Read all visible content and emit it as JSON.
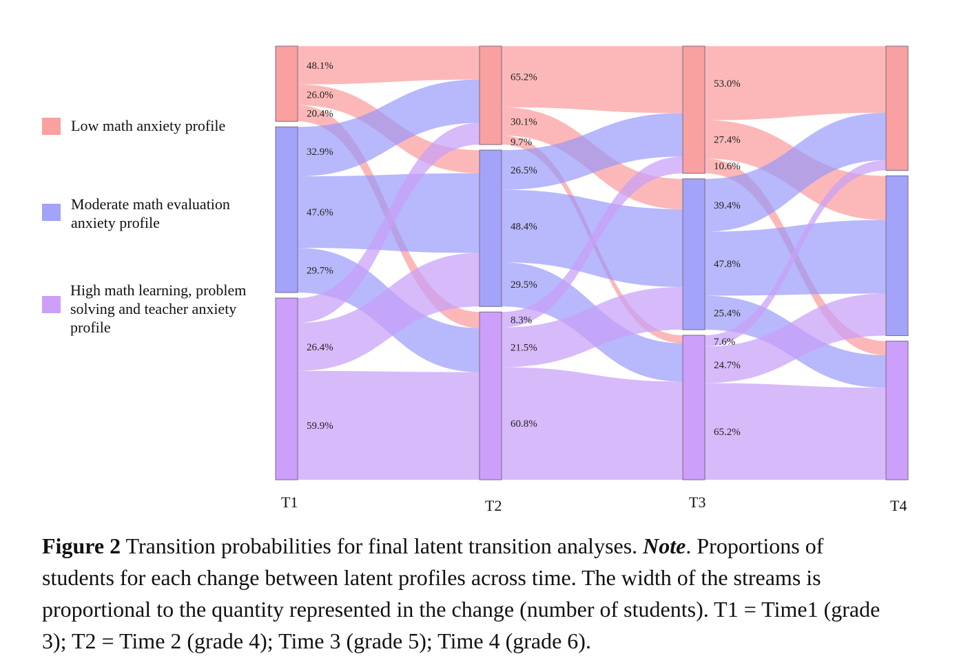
{
  "legend": [
    {
      "label": "Low math anxiety profile",
      "color": "#f9a0a0"
    },
    {
      "label": "Moderate math evaluation anxiety profile",
      "color": "#a3a3fa"
    },
    {
      "label": "High math learning, problem solving and teacher anxiety profile",
      "color": "#cc9ffa"
    }
  ],
  "chart_data": {
    "type": "sankey",
    "times": [
      "T1",
      "T2",
      "T3",
      "T4"
    ],
    "profiles": [
      "Low",
      "Moderate",
      "High"
    ],
    "profile_proportions": [
      [
        0.178,
        0.392,
        0.43
      ],
      [
        0.233,
        0.37,
        0.397
      ],
      [
        0.301,
        0.357,
        0.342
      ],
      [
        0.294,
        0.378,
        0.328
      ]
    ],
    "transitions": [
      [
        [
          {
            "v": 48.1,
            "label": "48.1%"
          },
          {
            "v": 26.0,
            "label": "26.0%"
          },
          {
            "v": 20.4,
            "label": "20.4%"
          }
        ],
        [
          {
            "v": 32.9,
            "label": "32.9%"
          },
          {
            "v": 47.6,
            "label": "47.6%"
          },
          {
            "v": 29.7,
            "label": "29.7%"
          }
        ],
        [
          {
            "v": 13.7,
            "label": null
          },
          {
            "v": 26.4,
            "label": "26.4%"
          },
          {
            "v": 59.9,
            "label": "59.9%"
          }
        ]
      ],
      [
        [
          {
            "v": 65.2,
            "label": "65.2%"
          },
          {
            "v": 30.1,
            "label": "30.1%"
          },
          {
            "v": 9.7,
            "label": "9.7%"
          }
        ],
        [
          {
            "v": 26.5,
            "label": "26.5%"
          },
          {
            "v": 48.4,
            "label": "48.4%"
          },
          {
            "v": 29.5,
            "label": "29.5%"
          }
        ],
        [
          {
            "v": 8.3,
            "label": "8.3%"
          },
          {
            "v": 21.5,
            "label": "21.5%"
          },
          {
            "v": 60.8,
            "label": "60.8%"
          }
        ]
      ],
      [
        [
          {
            "v": 53.0,
            "label": "53.0%"
          },
          {
            "v": 27.4,
            "label": "27.4%"
          },
          {
            "v": 10.6,
            "label": "10.6%"
          }
        ],
        [
          {
            "v": 39.4,
            "label": "39.4%"
          },
          {
            "v": 47.8,
            "label": "47.8%"
          },
          {
            "v": 25.4,
            "label": "25.4%"
          }
        ],
        [
          {
            "v": 7.6,
            "label": "7.6%"
          },
          {
            "v": 24.7,
            "label": "24.7%"
          },
          {
            "v": 65.2,
            "label": "65.2%"
          }
        ]
      ]
    ],
    "node_colors": [
      "#f9a0a0",
      "#a3a3fa",
      "#cc9ffa"
    ],
    "flow_colors": [
      "rgba(251,150,150,0.68)",
      "rgba(150,150,250,0.68)",
      "rgba(200,160,248,0.72)"
    ]
  },
  "caption": {
    "fig": "Figure 2",
    "text1": " Transition probabilities for final latent transition analyses. ",
    "note": "Note",
    "text2": ". Proportions of students for each change between latent profiles across time. The width of the streams is proportional to the quantity represented in the change (number of students). T1 = Time1 (grade 3); T2 = Time 2 (grade 4); Time 3 (grade 5); Time 4 (grade 6)."
  }
}
